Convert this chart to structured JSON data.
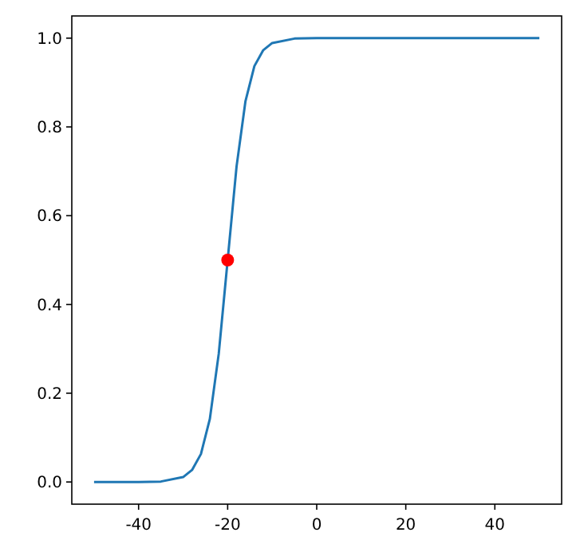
{
  "chart_data": {
    "type": "line",
    "xlim": [
      -55,
      55
    ],
    "ylim": [
      -0.05,
      1.05
    ],
    "xticks": [
      -40,
      -20,
      0,
      20,
      40
    ],
    "yticks": [
      {
        "value": 0,
        "label": "0.0"
      },
      {
        "value": 0.2,
        "label": "0.2"
      },
      {
        "value": 0.4,
        "label": "0.4"
      },
      {
        "value": 0.6,
        "label": "0.6"
      },
      {
        "value": 0.8,
        "label": "0.8"
      },
      {
        "value": 1,
        "label": "1.0"
      }
    ],
    "grid": false,
    "series": [
      {
        "color": "#1f77b4",
        "marker": "none",
        "x": [
          -50,
          -40,
          -35,
          -30,
          -28,
          -26,
          -24,
          -22,
          -20,
          -18,
          -16,
          -14,
          -12,
          -10,
          -5,
          0,
          10,
          20,
          30,
          40,
          50
        ],
        "values": [
          0,
          0,
          0.001,
          0.011,
          0.027,
          0.063,
          0.142,
          0.289,
          0.5,
          0.711,
          0.858,
          0.937,
          0.973,
          0.989,
          0.999,
          1,
          1,
          1,
          1,
          1,
          1
        ]
      },
      {
        "type": "scatter",
        "color": "#ff0000",
        "marker": "circle",
        "x": [
          -20
        ],
        "values": [
          0.5
        ]
      }
    ]
  }
}
